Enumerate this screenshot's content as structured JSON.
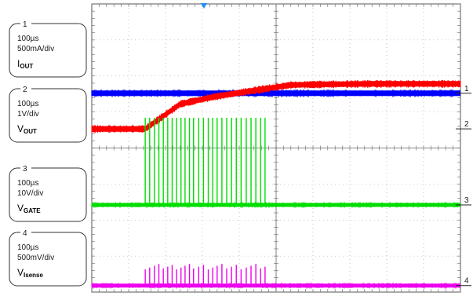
{
  "chart_data": {
    "type": "line",
    "title": "",
    "grid": true,
    "trigger_marker": true,
    "channels": [
      {
        "number": "1",
        "timebase": "100µs",
        "scale": "500mA/div",
        "signal_main": "I",
        "signal_sub": "OUT",
        "color": "#0000ff",
        "level_div": 5.52,
        "waveform": "flat",
        "bounds_div": [
          0.0,
          1.0
        ]
      },
      {
        "number": "2",
        "timebase": "100µs",
        "scale": "1V/div",
        "signal_main": "V",
        "signal_sub": "OUT",
        "color": "#ff0000",
        "level_div": 4.53,
        "waveform": "ramp",
        "ramp_points_div": [
          [
            0,
            4.53
          ],
          [
            1.45,
            4.53
          ],
          [
            2.4,
            5.22
          ],
          [
            3.3,
            5.42
          ],
          [
            4.3,
            5.58
          ],
          [
            5.4,
            5.75
          ],
          [
            6.5,
            5.77
          ],
          [
            7.5,
            5.78
          ]
        ],
        "bounds_div": [
          3.0,
          6.0
        ]
      },
      {
        "number": "3",
        "timebase": "100µs",
        "scale": "10V/div",
        "signal_main": "V",
        "signal_sub": "GATE",
        "color": "#00dd00",
        "level_div": 2.42,
        "waveform": "pulses",
        "pulse_height_div": 2.42,
        "pulse_times_div": [
          1.45,
          1.57,
          1.7,
          1.82,
          1.94,
          2.06,
          2.18,
          2.3,
          2.42,
          2.53,
          2.65,
          2.76,
          2.9,
          3.03,
          3.16,
          3.28,
          3.4,
          3.53,
          3.66,
          3.79,
          3.92,
          4.05,
          4.19,
          4.32,
          4.45,
          4.58,
          4.7
        ],
        "bounds_div": [
          1.0,
          3.0
        ]
      },
      {
        "number": "4",
        "timebase": "100µs",
        "scale": "500mV/div",
        "signal_main": "V",
        "signal_sub": "Isense",
        "color": "#ee00ee",
        "level_div": 0.18,
        "waveform": "pulses",
        "pulse_height_div": 0.6,
        "pulse_times_div": [
          1.45,
          1.57,
          1.7,
          1.82,
          1.94,
          2.06,
          2.18,
          2.3,
          2.42,
          2.53,
          2.65,
          2.76,
          2.9,
          3.03,
          3.16,
          3.28,
          3.4,
          3.53,
          3.66,
          3.79,
          3.92,
          4.05,
          4.19,
          4.32,
          4.45,
          4.58,
          4.7
        ],
        "bounds_div": [
          0.0,
          1.0
        ]
      }
    ],
    "x_divisions": 10,
    "y_divisions": 8
  }
}
